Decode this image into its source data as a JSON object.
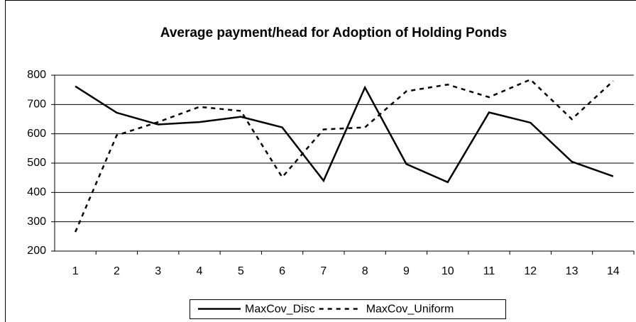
{
  "chart_data": {
    "type": "line",
    "title": "Average payment/head for Adoption of Holding Ponds",
    "categories": [
      1,
      2,
      3,
      4,
      5,
      6,
      7,
      8,
      9,
      10,
      11,
      12,
      13,
      14
    ],
    "series": [
      {
        "name": "MaxCov_Disc",
        "color": "#000000",
        "dash": false,
        "values": [
          762,
          672,
          632,
          640,
          658,
          622,
          440,
          758,
          497,
          435,
          673,
          638,
          505,
          455
        ]
      },
      {
        "name": "MaxCov_Uniform",
        "color": "#000000",
        "dash": true,
        "values": [
          265,
          595,
          640,
          692,
          678,
          452,
          615,
          622,
          745,
          768,
          725,
          785,
          650,
          780
        ]
      }
    ],
    "ylim": [
      200,
      800
    ],
    "yticks": [
      200,
      300,
      400,
      500,
      600,
      700,
      800
    ],
    "grid": true,
    "legend": "bottom"
  }
}
